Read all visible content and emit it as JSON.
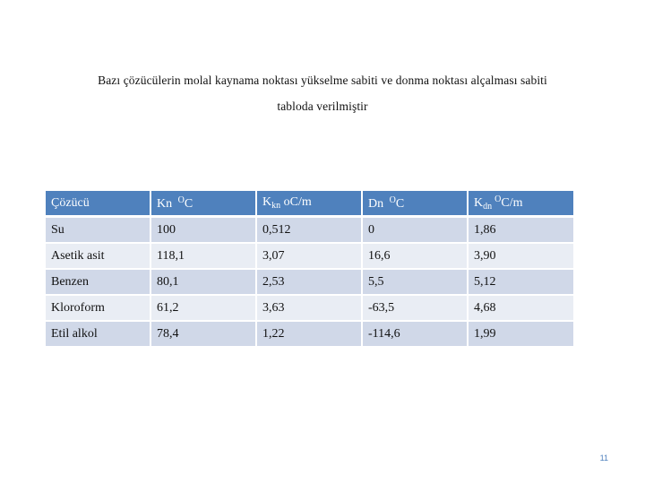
{
  "intro": {
    "line1": "Bazı çözücülerin molal kaynama noktası yükselme sabiti ve donma noktası alçalması sabiti",
    "line2": "tabloda verilmiştir"
  },
  "table": {
    "headers": [
      {
        "main": "Çözücü",
        "sub": "",
        "unit": ""
      },
      {
        "main": "Kn ",
        "sub": "",
        "sup": "O",
        "unit": "C"
      },
      {
        "main": "K",
        "sub": "kn",
        "unit": " oC/m"
      },
      {
        "main": "Dn ",
        "sub": "",
        "sup": "O",
        "unit": "C"
      },
      {
        "main": "K",
        "sub": "dn",
        "sup": "O",
        "unit": "C/m"
      }
    ],
    "rows": [
      [
        "Su",
        "100",
        "0,512",
        "0",
        "1,86"
      ],
      [
        "Asetik asit",
        "118,1",
        "3,07",
        "16,6",
        "3,90"
      ],
      [
        "Benzen",
        "80,1",
        "2,53",
        "5,5",
        "5,12"
      ],
      [
        "Kloroform",
        "61,2",
        "3,63",
        "-63,5",
        "4,68"
      ],
      [
        "Etil alkol",
        "78,4",
        "1,22",
        "-114,6",
        "1,99"
      ]
    ]
  },
  "page_number": "11",
  "colors": {
    "header": "#4f81bd",
    "row_odd": "#d0d8e8",
    "row_even": "#e9edf4"
  }
}
